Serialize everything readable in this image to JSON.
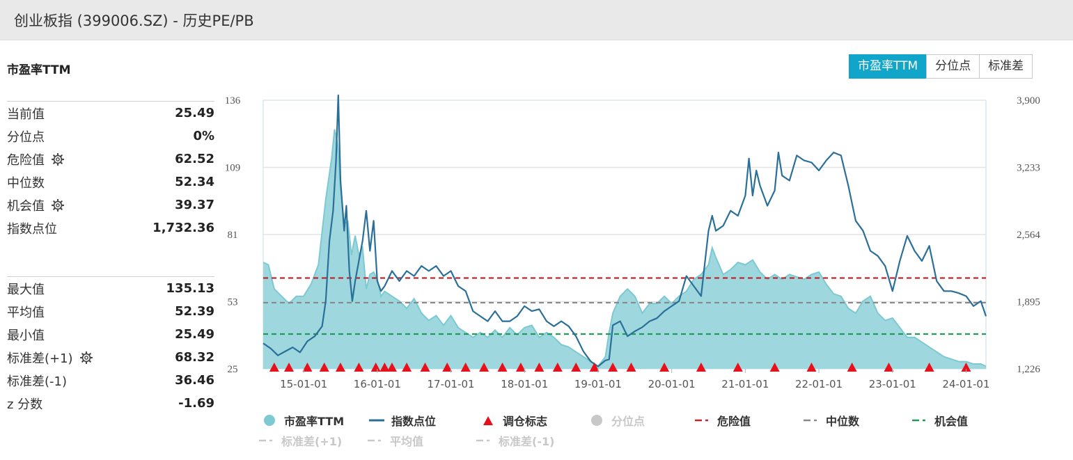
{
  "page_title": "创业板指 (399006.SZ) - 历史PE/PB",
  "section_title": "市盈率TTM",
  "tabs": [
    {
      "label": "市盈率TTM",
      "active": true
    },
    {
      "label": "分位点",
      "active": false
    },
    {
      "label": "标准差",
      "active": false
    }
  ],
  "stats_top": [
    {
      "label": "当前值",
      "value": "25.49",
      "gear": false
    },
    {
      "label": "分位点",
      "value": "0%",
      "gear": false
    },
    {
      "label": "危险值",
      "value": "62.52",
      "gear": true
    },
    {
      "label": "中位数",
      "value": "52.34",
      "gear": false
    },
    {
      "label": "机会值",
      "value": "39.37",
      "gear": true
    },
    {
      "label": "指数点位",
      "value": "1,732.36",
      "gear": false
    }
  ],
  "stats_bottom": [
    {
      "label": "最大值",
      "value": "135.13",
      "gear": false
    },
    {
      "label": "平均值",
      "value": "52.39",
      "gear": false
    },
    {
      "label": "最小值",
      "value": "25.49",
      "gear": false
    },
    {
      "label": "标准差(+1)",
      "value": "68.32",
      "gear": true
    },
    {
      "label": "标准差(-1)",
      "value": "36.46",
      "gear": false
    },
    {
      "label": "z 分数",
      "value": "-1.69",
      "gear": false
    }
  ],
  "colors": {
    "pe_fill": "#9fd7de",
    "pe_edge": "#7cc9d2",
    "index_line": "#2a6f98",
    "triangle": "#e8101a",
    "danger": "#c0272d",
    "median": "#888888",
    "opportunity": "#1f9a5a",
    "tab_active": "#11a6c9",
    "legend_dim": "#c8c8c8"
  },
  "legend": [
    {
      "label": "市盈率TTM",
      "icon": "circle",
      "color": "#7ecad3",
      "dim": false
    },
    {
      "label": "指数点位",
      "icon": "line",
      "color": "#2a6f98",
      "dim": false
    },
    {
      "label": "调仓标志",
      "icon": "triangle",
      "color": "#e8101a",
      "dim": false
    },
    {
      "label": "分位点",
      "icon": "circle",
      "color": "#c8c8c8",
      "dim": true
    },
    {
      "label": "危险值",
      "icon": "dash",
      "color": "#c0272d",
      "dim": false
    },
    {
      "label": "中位数",
      "icon": "dash",
      "color": "#888888",
      "dim": false
    },
    {
      "label": "机会值",
      "icon": "dash",
      "color": "#1f9a5a",
      "dim": false
    },
    {
      "label": "标准差(+1)",
      "icon": "dash",
      "color": "#c8c8c8",
      "dim": true
    },
    {
      "label": "平均值",
      "icon": "dash",
      "color": "#c8c8c8",
      "dim": true
    },
    {
      "label": "标准差(-1)",
      "icon": "dash",
      "color": "#c8c8c8",
      "dim": true
    }
  ],
  "chart_data": {
    "type": "area",
    "y_left_ticks": [
      "136",
      "109",
      "81",
      "53",
      "25"
    ],
    "y_right_ticks": [
      "3,900",
      "3,233",
      "2,564",
      "1,895",
      "1,226"
    ],
    "ylim_left": [
      25,
      136
    ],
    "ylim_right": [
      1226,
      3900
    ],
    "x_ticks": [
      "15-01-01",
      "16-01-01",
      "17-01-01",
      "18-01-01",
      "19-01-01",
      "20-01-01",
      "21-01-01",
      "22-01-01",
      "23-01-01",
      "24-01-01"
    ],
    "x_tick_years": [
      2015,
      2016,
      2017,
      2018,
      2019,
      2020,
      2021,
      2022,
      2023,
      2024
    ],
    "xlim": [
      2014.45,
      2024.27
    ],
    "ref_lines": {
      "danger": 62.52,
      "median": 52.34,
      "opportunity": 39.37
    },
    "series": [
      {
        "name": "市盈率TTM",
        "axis": "left",
        "x": [
          2014.45,
          2014.52,
          2014.6,
          2014.7,
          2014.8,
          2014.9,
          2015.0,
          2015.1,
          2015.2,
          2015.3,
          2015.38,
          2015.42,
          2015.46,
          2015.5,
          2015.55,
          2015.6,
          2015.65,
          2015.7,
          2015.75,
          2015.8,
          2015.85,
          2015.9,
          2015.95,
          2016.0,
          2016.05,
          2016.1,
          2016.2,
          2016.3,
          2016.4,
          2016.5,
          2016.6,
          2016.7,
          2016.8,
          2016.9,
          2017.0,
          2017.1,
          2017.2,
          2017.3,
          2017.4,
          2017.5,
          2017.6,
          2017.7,
          2017.8,
          2017.9,
          2018.0,
          2018.1,
          2018.2,
          2018.3,
          2018.4,
          2018.5,
          2018.6,
          2018.7,
          2018.8,
          2018.9,
          2019.0,
          2019.1,
          2019.15,
          2019.2,
          2019.3,
          2019.4,
          2019.5,
          2019.6,
          2019.7,
          2019.8,
          2019.9,
          2020.0,
          2020.1,
          2020.2,
          2020.3,
          2020.4,
          2020.5,
          2020.55,
          2020.6,
          2020.7,
          2020.8,
          2020.9,
          2021.0,
          2021.1,
          2021.2,
          2021.3,
          2021.4,
          2021.5,
          2021.6,
          2021.7,
          2021.8,
          2021.9,
          2022.0,
          2022.1,
          2022.2,
          2022.3,
          2022.4,
          2022.5,
          2022.6,
          2022.7,
          2022.8,
          2022.9,
          2023.0,
          2023.1,
          2023.2,
          2023.3,
          2023.4,
          2023.5,
          2023.6,
          2023.7,
          2023.8,
          2023.9,
          2024.0,
          2024.1,
          2024.2,
          2024.27
        ],
        "values": [
          69,
          68,
          58,
          55,
          52,
          55,
          55,
          60,
          68,
          95,
          112,
          124,
          118,
          100,
          85,
          86,
          72,
          80,
          72,
          75,
          58,
          64,
          65,
          62,
          55,
          57,
          55,
          53,
          50,
          54,
          48,
          45,
          47,
          43,
          47,
          42,
          40,
          38,
          40,
          38,
          41,
          38,
          42,
          39,
          42,
          43,
          38,
          40,
          38,
          35,
          34,
          32,
          30,
          28,
          26,
          30,
          40,
          48,
          55,
          58,
          55,
          48,
          52,
          52,
          55,
          52,
          55,
          57,
          62,
          64,
          68,
          75,
          71,
          64,
          66,
          69,
          68,
          70,
          65,
          62,
          64,
          62,
          64,
          63,
          62,
          64,
          65,
          60,
          56,
          55,
          50,
          48,
          53,
          55,
          48,
          45,
          46,
          42,
          38,
          38,
          36,
          34,
          32,
          30,
          29,
          28,
          28,
          27,
          27,
          26
        ]
      },
      {
        "name": "指数点位",
        "axis": "right",
        "x": [
          2014.45,
          2014.55,
          2014.65,
          2014.75,
          2014.85,
          2014.95,
          2015.05,
          2015.15,
          2015.25,
          2015.3,
          2015.35,
          2015.4,
          2015.44,
          2015.47,
          2015.5,
          2015.55,
          2015.58,
          2015.62,
          2015.66,
          2015.7,
          2015.75,
          2015.8,
          2015.85,
          2015.9,
          2015.95,
          2016.0,
          2016.05,
          2016.1,
          2016.2,
          2016.3,
          2016.4,
          2016.5,
          2016.6,
          2016.7,
          2016.8,
          2016.9,
          2017.0,
          2017.1,
          2017.2,
          2017.3,
          2017.4,
          2017.5,
          2017.6,
          2017.7,
          2017.8,
          2017.9,
          2018.0,
          2018.1,
          2018.2,
          2018.3,
          2018.4,
          2018.5,
          2018.6,
          2018.7,
          2018.8,
          2018.9,
          2019.0,
          2019.1,
          2019.15,
          2019.2,
          2019.3,
          2019.4,
          2019.5,
          2019.6,
          2019.7,
          2019.8,
          2019.9,
          2020.0,
          2020.1,
          2020.2,
          2020.3,
          2020.4,
          2020.5,
          2020.55,
          2020.6,
          2020.7,
          2020.8,
          2020.9,
          2021.0,
          2021.05,
          2021.1,
          2021.15,
          2021.2,
          2021.3,
          2021.4,
          2021.45,
          2021.5,
          2021.6,
          2021.7,
          2021.8,
          2021.9,
          2022.0,
          2022.1,
          2022.2,
          2022.3,
          2022.4,
          2022.5,
          2022.6,
          2022.7,
          2022.8,
          2022.9,
          2023.0,
          2023.1,
          2023.2,
          2023.3,
          2023.4,
          2023.5,
          2023.6,
          2023.7,
          2023.8,
          2023.9,
          2024.0,
          2024.1,
          2024.2,
          2024.27
        ],
        "values": [
          1480,
          1430,
          1360,
          1400,
          1440,
          1390,
          1500,
          1550,
          1650,
          1900,
          2500,
          2800,
          3300,
          3950,
          3100,
          2600,
          2850,
          2200,
          1900,
          2100,
          2300,
          2500,
          2800,
          2400,
          2700,
          2100,
          2000,
          2050,
          2200,
          2100,
          2200,
          2150,
          2250,
          2200,
          2250,
          2150,
          2200,
          2050,
          2000,
          1800,
          1750,
          1700,
          1800,
          1700,
          1700,
          1750,
          1850,
          1800,
          1820,
          1700,
          1650,
          1700,
          1650,
          1550,
          1400,
          1300,
          1250,
          1310,
          1320,
          1660,
          1700,
          1550,
          1600,
          1640,
          1700,
          1730,
          1800,
          1850,
          1900,
          2150,
          2050,
          1950,
          2600,
          2750,
          2600,
          2650,
          2800,
          2750,
          2950,
          3320,
          2950,
          3200,
          3050,
          2850,
          3000,
          3380,
          3150,
          3100,
          3350,
          3300,
          3280,
          3200,
          3300,
          3380,
          3350,
          3050,
          2700,
          2600,
          2400,
          2350,
          2250,
          2000,
          2300,
          2550,
          2400,
          2300,
          2450,
          2100,
          2000,
          2000,
          1980,
          1950,
          1850,
          1900,
          1750
        ]
      }
    ],
    "adjustments_x": [
      2014.6,
      2014.8,
      2015.05,
      2015.28,
      2015.5,
      2015.75,
      2015.98,
      2016.1,
      2016.2,
      2016.4,
      2016.65,
      2016.95,
      2017.2,
      2017.45,
      2017.7,
      2017.95,
      2018.2,
      2018.45,
      2018.7,
      2018.95,
      2019.2,
      2019.45,
      2019.9,
      2020.4,
      2020.9,
      2021.4,
      2021.9,
      2022.45,
      2022.95,
      2023.5,
      2024.0
    ]
  }
}
